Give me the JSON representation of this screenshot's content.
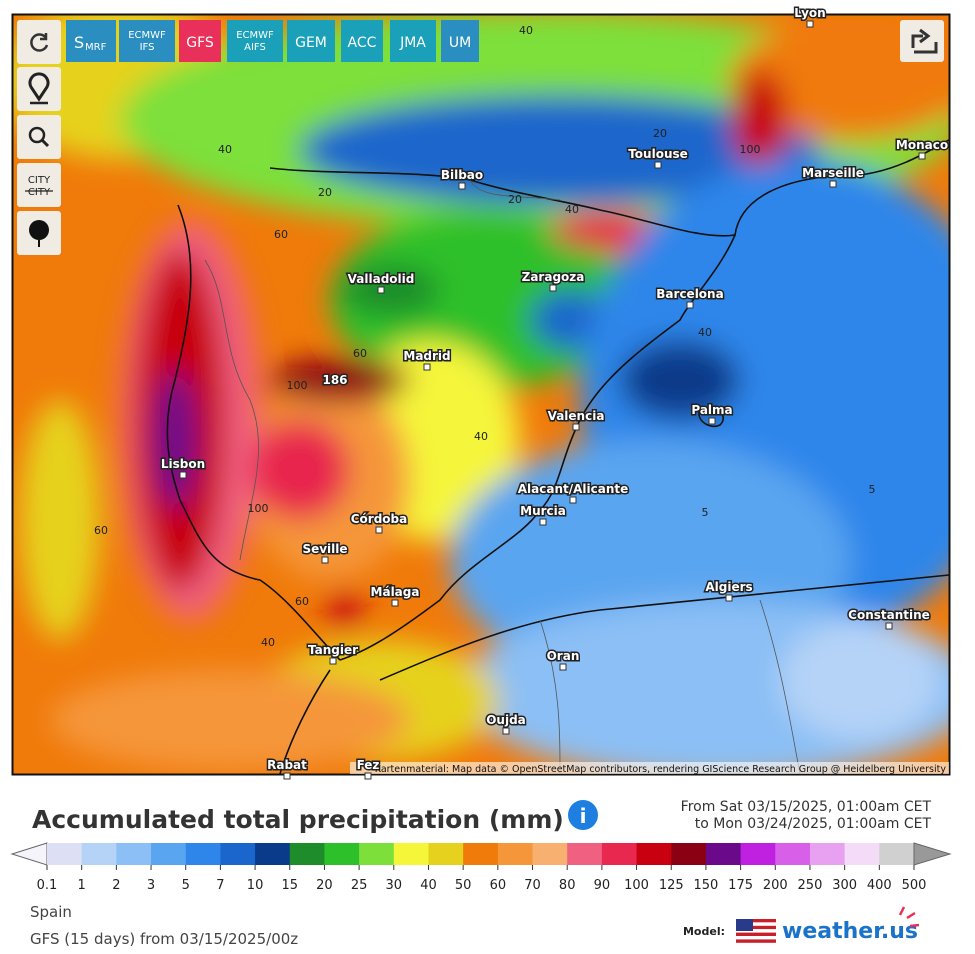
{
  "toolbar": {
    "buttons": [
      {
        "main": "S",
        "sub": "MRF"
      },
      {
        "lines": [
          "ECMWF",
          "IFS"
        ]
      },
      {
        "lines": [
          "GFS"
        ]
      },
      {
        "lines": [
          "ECMWF",
          "AIFS"
        ]
      },
      {
        "lines": [
          "GEM"
        ]
      },
      {
        "lines": [
          "ACC"
        ]
      },
      {
        "lines": [
          "JMA"
        ]
      },
      {
        "lines": [
          "UM"
        ]
      }
    ],
    "city_tool": [
      "CITY",
      "CITY"
    ]
  },
  "map": {
    "cities": [
      "Lyon",
      "Bilbao",
      "Toulouse",
      "Marseille",
      "Monaco",
      "Valladolid",
      "Zaragoza",
      "Barcelona",
      "Madrid",
      "Palma",
      "Valencia",
      "Lisbon",
      "Alacant/Alicante",
      "Murcia",
      "Córdoba",
      "Seville",
      "Málaga",
      "Algiers",
      "Constantine",
      "Tangier",
      "Oran",
      "Oujda",
      "Rabat",
      "Fez"
    ],
    "contour_labels": [
      "40",
      "40",
      "20",
      "100",
      "20",
      "20",
      "40",
      "60",
      "60",
      "100",
      "186",
      "40",
      "40",
      "5",
      "5",
      "100",
      "60",
      "60",
      "40"
    ],
    "attribution": "Kartenmaterial: Map data © OpenStreetMap contributors, rendering GIScience Research Group @ Heidelberg University"
  },
  "legend": {
    "title": "Accumulated total precipitation (mm)",
    "period": [
      "From Sat 03/15/2025, 01:00am CET",
      "to Mon 03/24/2025, 01:00am CET"
    ],
    "ticks": [
      0.1,
      1,
      2,
      3,
      5,
      7,
      10,
      15,
      20,
      25,
      30,
      40,
      50,
      60,
      70,
      80,
      90,
      100,
      125,
      150,
      175,
      200,
      250,
      300,
      400,
      500
    ],
    "colors": [
      "#dde0f4",
      "#b5d3f7",
      "#8bbff5",
      "#5aa5f0",
      "#2f86ea",
      "#1a66cc",
      "#0a3a8a",
      "#1e8c2a",
      "#2ec02a",
      "#7de03a",
      "#f5f53a",
      "#e6d21e",
      "#f07a0a",
      "#f5963a",
      "#f7b070",
      "#f06080",
      "#e8284e",
      "#c80010",
      "#8c0014",
      "#6a0a8a",
      "#c020e0",
      "#d860e8",
      "#e8a0f0",
      "#f4dcf8",
      "#d0d0d0"
    ]
  },
  "footer": {
    "region": "Spain",
    "run": "GFS (15 days) from 03/15/2025/00z",
    "model_label": "Model:",
    "brand": "weather.us"
  }
}
